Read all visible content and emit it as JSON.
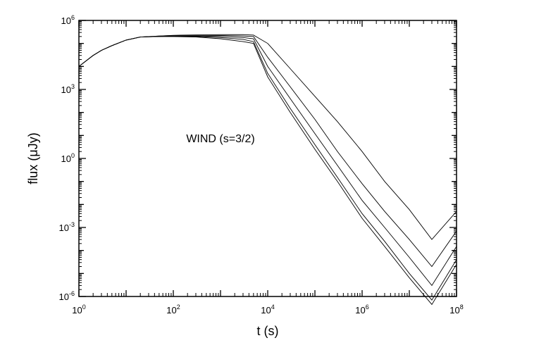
{
  "chart_data": {
    "type": "line",
    "xlabel": "t (s)",
    "ylabel": "flux (μJy)",
    "x_scale": "log",
    "y_scale": "log",
    "xlim": [
      1,
      100000000
    ],
    "ylim": [
      1e-06,
      1000000
    ],
    "grid": false,
    "x_ticks": [
      {
        "value": 1,
        "base": "10",
        "exp": "0"
      },
      {
        "value": 100,
        "base": "10",
        "exp": "2"
      },
      {
        "value": 10000,
        "base": "10",
        "exp": "4"
      },
      {
        "value": 1000000,
        "base": "10",
        "exp": "6"
      },
      {
        "value": 100000000,
        "base": "10",
        "exp": "8"
      }
    ],
    "y_ticks": [
      {
        "value": 1e-06,
        "base": "10",
        "exp": "-6"
      },
      {
        "value": 0.001,
        "base": "10",
        "exp": "-3"
      },
      {
        "value": 1,
        "base": "10",
        "exp": "0"
      },
      {
        "value": 1000,
        "base": "10",
        "exp": "3"
      },
      {
        "value": 1000000,
        "base": "10",
        "exp": "6"
      }
    ],
    "annotations": [
      {
        "text": "WIND (s=3/2)",
        "x": 1000,
        "y": 5
      }
    ],
    "series": [
      {
        "x": [
          1,
          2,
          3,
          5,
          10,
          20,
          50,
          100,
          300,
          1000,
          3000,
          5000,
          10000,
          30000,
          100000,
          300000,
          1000000,
          3000000,
          10000000,
          30000000,
          100000000
        ],
        "y": [
          10000,
          30000,
          50000,
          80000,
          140000,
          190000,
          200000,
          200000,
          190000,
          160000,
          120000,
          100000,
          3500,
          100,
          2.5,
          0.1,
          0.0025,
          0.00015,
          6.5e-06,
          4.5e-07,
          2.5e-05
        ]
      },
      {
        "x": [
          1,
          2,
          3,
          5,
          10,
          20,
          50,
          100,
          300,
          1000,
          3000,
          5000,
          10000,
          30000,
          100000,
          300000,
          1000000,
          3000000,
          10000000,
          30000000,
          100000000
        ],
        "y": [
          10000,
          30000,
          50000,
          80000,
          140000,
          190000,
          200000,
          200000,
          200000,
          180000,
          150000,
          120000,
          5000,
          150,
          4,
          0.15,
          0.004,
          0.00025,
          1e-05,
          7e-07,
          4e-05
        ]
      },
      {
        "x": [
          1,
          2,
          3,
          5,
          10,
          20,
          50,
          100,
          300,
          1000,
          3000,
          5000,
          10000,
          30000,
          100000,
          300000,
          1000000,
          3000000,
          10000000,
          30000000,
          100000000
        ],
        "y": [
          10000,
          30000,
          50000,
          80000,
          140000,
          190000,
          200000,
          210000,
          210000,
          200000,
          180000,
          160000,
          10000,
          400,
          12,
          0.5,
          0.015,
          0.001,
          5e-05,
          3e-06,
          0.00015
        ]
      },
      {
        "x": [
          1,
          2,
          3,
          5,
          10,
          20,
          50,
          100,
          300,
          1000,
          3000,
          5000,
          10000,
          30000,
          100000,
          300000,
          1000000,
          3000000,
          10000000,
          30000000,
          100000000
        ],
        "y": [
          10000,
          30000,
          50000,
          80000,
          140000,
          190000,
          210000,
          220000,
          225000,
          220000,
          210000,
          200000,
          25000,
          1300,
          50,
          2,
          0.08,
          0.005,
          0.0003,
          2e-05,
          0.0007
        ]
      },
      {
        "x": [
          1,
          2,
          3,
          5,
          10,
          20,
          50,
          100,
          300,
          1000,
          3000,
          5000,
          10000,
          30000,
          100000,
          300000,
          1000000,
          3000000,
          10000000,
          30000000,
          100000000
        ],
        "y": [
          10000,
          30000,
          50000,
          80000,
          140000,
          190000,
          210000,
          225000,
          235000,
          240000,
          240000,
          230000,
          100000,
          8000,
          500,
          40,
          2,
          0.1,
          0.006,
          0.0003,
          0.005
        ]
      }
    ]
  }
}
